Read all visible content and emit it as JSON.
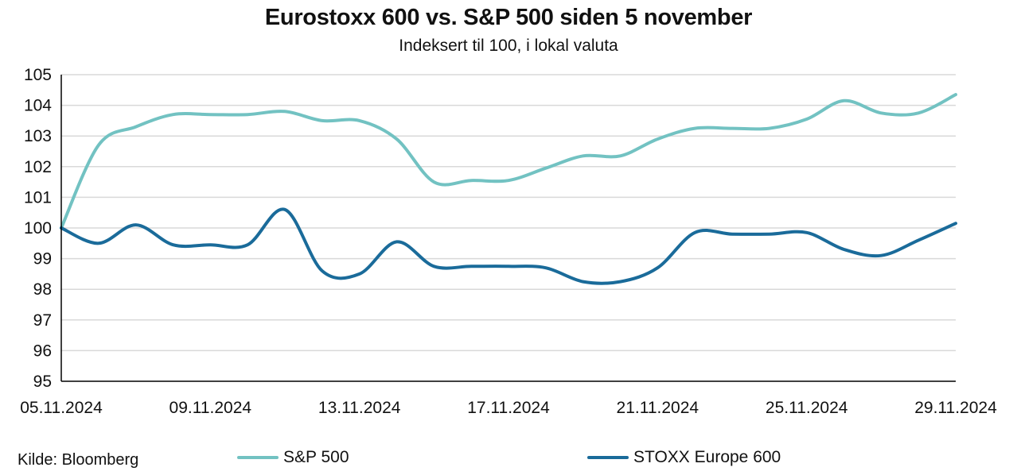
{
  "chart_data": {
    "type": "line",
    "title": "Eurostoxx 600 vs. S&P 500 siden 5 november",
    "subtitle": "Indeksert til 100, i lokal valuta",
    "source": "Kilde: Bloomberg",
    "xlabel": "",
    "ylabel": "",
    "ylim": [
      95,
      105
    ],
    "yticks": [
      95,
      96,
      97,
      98,
      99,
      100,
      101,
      102,
      103,
      104,
      105
    ],
    "xlim": [
      "05.11.2024",
      "29.11.2024"
    ],
    "xtick_labels": [
      "05.11.2024",
      "09.11.2024",
      "13.11.2024",
      "17.11.2024",
      "21.11.2024",
      "25.11.2024",
      "29.11.2024"
    ],
    "grid": "horizontal",
    "legend_position": "bottom",
    "x": [
      "05.11.2024",
      "06.11.2024",
      "07.11.2024",
      "08.11.2024",
      "09.11.2024",
      "10.11.2024",
      "11.11.2024",
      "12.11.2024",
      "13.11.2024",
      "14.11.2024",
      "15.11.2024",
      "16.11.2024",
      "17.11.2024",
      "18.11.2024",
      "19.11.2024",
      "20.11.2024",
      "21.11.2024",
      "22.11.2024",
      "23.11.2024",
      "24.11.2024",
      "25.11.2024",
      "26.11.2024",
      "27.11.2024",
      "28.11.2024",
      "29.11.2024"
    ],
    "series": [
      {
        "name": "S&P 500",
        "color": "#72c2c2",
        "values": [
          100.0,
          102.7,
          103.3,
          103.7,
          103.7,
          103.7,
          103.8,
          103.5,
          103.5,
          102.9,
          101.5,
          101.55,
          101.55,
          101.95,
          102.35,
          102.35,
          102.9,
          103.25,
          103.25,
          103.25,
          103.55,
          104.15,
          103.75,
          103.75,
          104.35
        ]
      },
      {
        "name": "STOXX Europe 600",
        "color": "#1a6b9a",
        "values": [
          100.0,
          99.5,
          100.1,
          99.45,
          99.45,
          99.45,
          100.6,
          98.6,
          98.5,
          99.55,
          98.75,
          98.75,
          98.75,
          98.7,
          98.25,
          98.25,
          98.7,
          99.85,
          99.8,
          99.8,
          99.85,
          99.3,
          99.1,
          99.6,
          100.15
        ]
      }
    ]
  }
}
